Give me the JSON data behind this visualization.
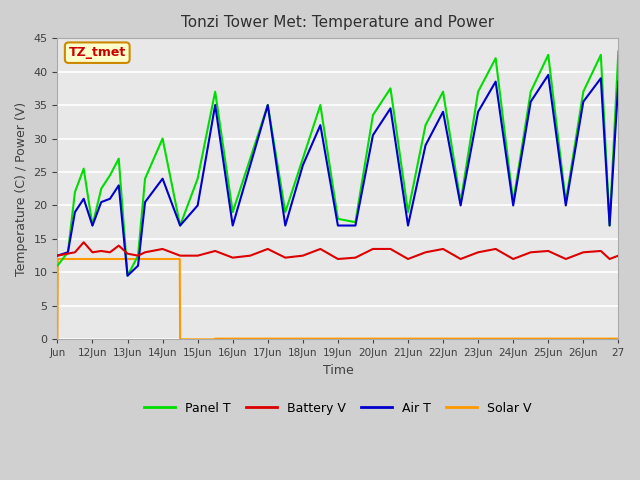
{
  "title": "Tonzi Tower Met: Temperature and Power",
  "xlabel": "Time",
  "ylabel": "Temperature (C) / Power (V)",
  "ylim": [
    0,
    45
  ],
  "xlim": [
    0,
    16
  ],
  "annotation_text": "TZ_tmet",
  "annotation_bg": "#ffffcc",
  "annotation_border": "#cc8800",
  "annotation_text_color": "#cc0000",
  "legend_items": [
    "Panel T",
    "Battery V",
    "Air T",
    "Solar V"
  ],
  "legend_colors": [
    "#00cc00",
    "#cc0000",
    "#0000cc",
    "#ff9900"
  ],
  "tick_positions": [
    0,
    1,
    2,
    3,
    4,
    5,
    6,
    7,
    8,
    9,
    10,
    11,
    12,
    13,
    14,
    15,
    16
  ],
  "tick_labels": [
    "Jun",
    "12Jun",
    "13Jun",
    "14Jun",
    "15Jun",
    "16Jun",
    "17Jun",
    "18Jun",
    "19Jun",
    "20Jun",
    "21Jun",
    "22Jun",
    "23Jun",
    "24Jun",
    "25Jun",
    "26Jun",
    "27"
  ],
  "panel_t_x": [
    0.0,
    0.3,
    0.5,
    0.75,
    1.0,
    1.25,
    1.5,
    1.75,
    2.0,
    2.3,
    2.5,
    3.0,
    3.5,
    4.0,
    4.5,
    5.0,
    5.5,
    6.0,
    6.5,
    7.0,
    7.5,
    8.0,
    8.5,
    9.0,
    9.5,
    10.0,
    10.5,
    11.0,
    11.5,
    12.0,
    12.5,
    13.0,
    13.5,
    14.0,
    14.5,
    15.0,
    15.5,
    15.75,
    16.0
  ],
  "panel_t": [
    11.0,
    13.0,
    22.0,
    25.5,
    17.0,
    22.5,
    24.5,
    27.0,
    9.5,
    12.5,
    24.0,
    30.0,
    17.0,
    24.0,
    37.0,
    19.0,
    27.0,
    35.0,
    19.0,
    27.0,
    35.0,
    18.0,
    17.5,
    33.5,
    37.5,
    19.0,
    32.0,
    37.0,
    20.5,
    37.0,
    42.0,
    20.5,
    37.0,
    42.5,
    20.5,
    37.0,
    42.5,
    17.0,
    43.0
  ],
  "air_t_x": [
    0.0,
    0.3,
    0.5,
    0.75,
    1.0,
    1.25,
    1.5,
    1.75,
    2.0,
    2.3,
    2.5,
    3.0,
    3.5,
    4.0,
    4.5,
    5.0,
    5.5,
    6.0,
    6.5,
    7.0,
    7.5,
    8.0,
    8.5,
    9.0,
    9.5,
    10.0,
    10.5,
    11.0,
    11.5,
    12.0,
    12.5,
    13.0,
    13.5,
    14.0,
    14.5,
    15.0,
    15.5,
    15.75,
    16.0
  ],
  "air_t": [
    12.5,
    13.0,
    19.0,
    21.0,
    17.0,
    20.5,
    21.0,
    23.0,
    9.5,
    11.0,
    20.5,
    24.0,
    17.0,
    20.0,
    35.0,
    17.0,
    26.0,
    35.0,
    17.0,
    26.0,
    32.0,
    17.0,
    17.0,
    30.5,
    34.5,
    17.0,
    29.0,
    34.0,
    20.0,
    34.0,
    38.5,
    20.0,
    35.5,
    39.5,
    20.0,
    35.5,
    39.0,
    17.0,
    38.5
  ],
  "battery_v_x": [
    0.0,
    0.3,
    0.5,
    0.75,
    1.0,
    1.25,
    1.5,
    1.75,
    2.0,
    2.3,
    2.5,
    3.0,
    3.5,
    4.0,
    4.5,
    5.0,
    5.5,
    6.0,
    6.5,
    7.0,
    7.5,
    8.0,
    8.5,
    9.0,
    9.5,
    10.0,
    10.5,
    11.0,
    11.5,
    12.0,
    12.5,
    13.0,
    13.5,
    14.0,
    14.5,
    15.0,
    15.5,
    15.75,
    16.0
  ],
  "battery_v": [
    12.5,
    12.8,
    13.0,
    14.5,
    13.0,
    13.2,
    13.0,
    14.0,
    12.8,
    12.5,
    13.0,
    13.5,
    12.5,
    12.5,
    13.2,
    12.2,
    12.5,
    13.5,
    12.2,
    12.5,
    13.5,
    12.0,
    12.2,
    13.5,
    13.5,
    12.0,
    13.0,
    13.5,
    12.0,
    13.0,
    13.5,
    12.0,
    13.0,
    13.2,
    12.0,
    13.0,
    13.2,
    12.0,
    12.5
  ],
  "solar_v_x": [
    0.0,
    0.01,
    1.0,
    3.49,
    3.5,
    4.49,
    4.5,
    4.51,
    16.0
  ],
  "solar_v_y": [
    0.0,
    12.0,
    12.0,
    12.0,
    0.0,
    0.0,
    0.1,
    0.1,
    0.1
  ]
}
